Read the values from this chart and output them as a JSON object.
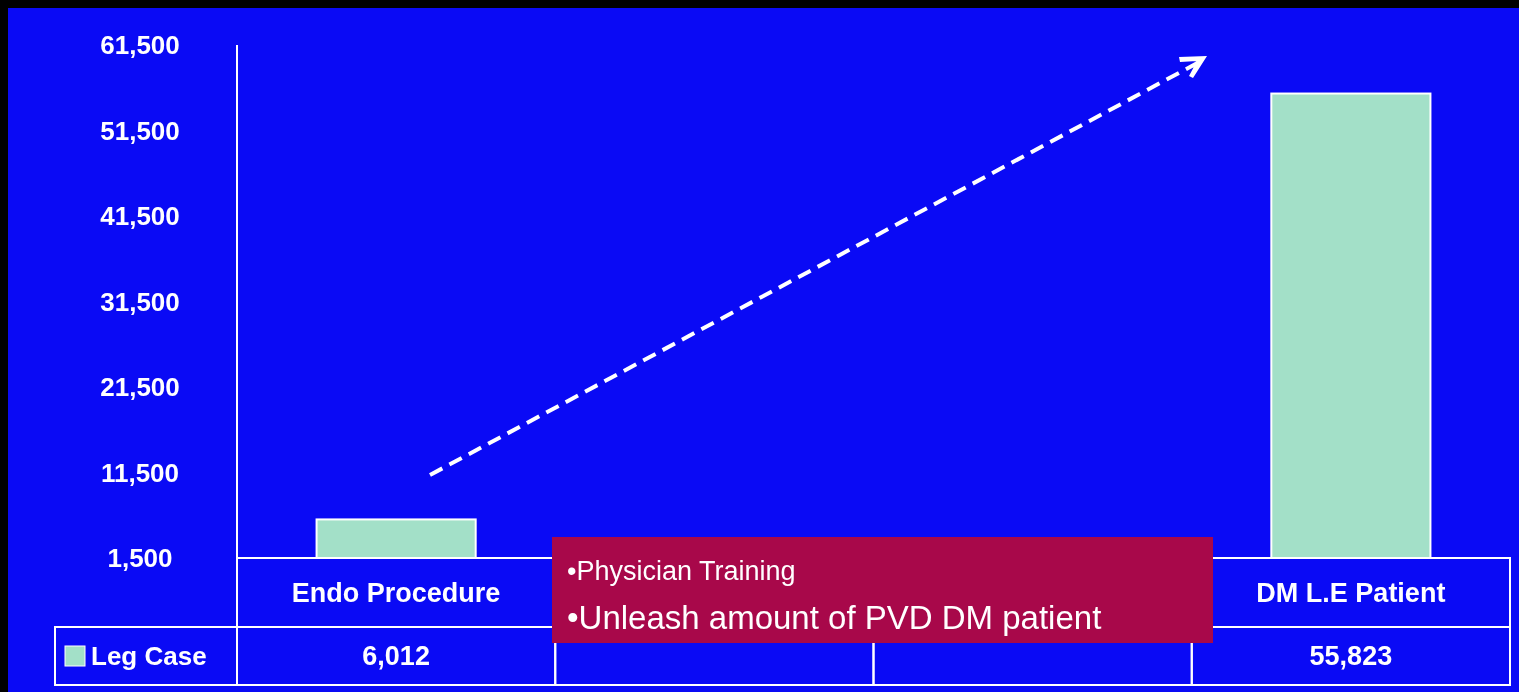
{
  "chart_data": {
    "type": "bar",
    "categories": [
      "Endo Procedure",
      null,
      null,
      "DM L.E Patient"
    ],
    "series": [
      {
        "name": "Leg Case",
        "color": "#a3e0c8",
        "values": [
          6012,
          null,
          null,
          55823
        ],
        "value_labels": [
          "6,012",
          null,
          null,
          "55,823"
        ]
      }
    ],
    "ylim": [
      1500,
      61500
    ],
    "yticks": [
      {
        "value": 1500,
        "label": "1,500"
      },
      {
        "value": 11500,
        "label": "11,500"
      },
      {
        "value": 21500,
        "label": "21,500"
      },
      {
        "value": 31500,
        "label": "31,500"
      },
      {
        "value": 41500,
        "label": "41,500"
      },
      {
        "value": 51500,
        "label": "51,500"
      },
      {
        "value": 61500,
        "label": "61,500"
      }
    ],
    "legend": "bottom left",
    "grid": false,
    "annotations": [
      "•Physician Training",
      "•Unleash amount of PVD DM patient"
    ]
  }
}
